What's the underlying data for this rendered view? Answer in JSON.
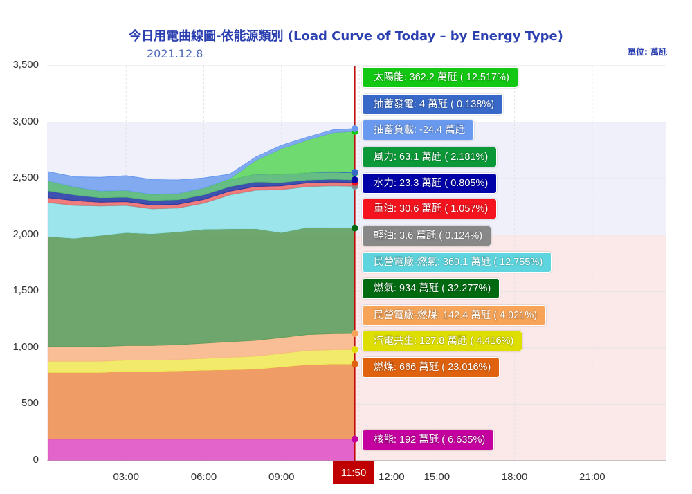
{
  "chart_data": {
    "type": "area",
    "stacked": true,
    "title": "今日用電曲線圖-依能源類別 (Load Curve of Today – by Energy Type)",
    "subtitle": "2021.12.8",
    "unit_label": "單位: 萬瓩",
    "unit": "萬瓩",
    "ylim": [
      0,
      3500
    ],
    "yticks": [
      "0",
      "500",
      "1,000",
      "1,500",
      "2,000",
      "2,500",
      "3,000",
      "3,500"
    ],
    "xlim": [
      "00:00",
      "24:00"
    ],
    "xticks": [
      "03:00",
      "06:00",
      "09:00",
      "12:00",
      "15:00",
      "18:00",
      "21:00"
    ],
    "current_time": "11:50",
    "grid": true,
    "bands": [
      {
        "from": 0,
        "to": 2000,
        "color": "#fbe9ea"
      },
      {
        "from": 2000,
        "to": 3000,
        "color": "#eff0fa"
      }
    ],
    "x": [
      "00:00",
      "01:00",
      "02:00",
      "03:00",
      "04:00",
      "05:00",
      "06:00",
      "07:00",
      "08:00",
      "09:00",
      "10:00",
      "11:00",
      "11:50"
    ],
    "series": [
      {
        "name": "核能",
        "value": "192",
        "pct": "6.635%",
        "fill": "#e055c8",
        "color": "#c4009f",
        "values": [
          192,
          192,
          192,
          192,
          192,
          192,
          192,
          192,
          192,
          192,
          192,
          192,
          192
        ]
      },
      {
        "name": "燃煤",
        "value": "666",
        "pct": "23.016%",
        "fill": "#ee9458",
        "color": "#e0620e",
        "values": [
          590,
          590,
          590,
          600,
          600,
          605,
          610,
          615,
          620,
          640,
          660,
          665,
          666
        ]
      },
      {
        "name": "汽電共生",
        "value": "127.8",
        "pct": "4.416%",
        "fill": "#efea5c",
        "color": "#dede00",
        "values": [
          100,
          100,
          100,
          100,
          100,
          100,
          105,
          110,
          115,
          120,
          125,
          127,
          127.8
        ]
      },
      {
        "name": "民營電廠-燃煤",
        "value": "142.4",
        "pct": "4.921%",
        "fill": "#f8b98c",
        "color": "#f7a458",
        "values": [
          130,
          130,
          130,
          130,
          130,
          132,
          135,
          138,
          140,
          140,
          142,
          142,
          142.4
        ]
      },
      {
        "name": "燃氣",
        "value": "934",
        "pct": "32.277%",
        "fill": "#5f9e5f",
        "color": "#006a10",
        "values": [
          975,
          960,
          985,
          1000,
          990,
          1000,
          1010,
          1000,
          990,
          930,
          950,
          940,
          934
        ]
      },
      {
        "name": "民營電廠-燃氣",
        "value": "369.1",
        "pct": "12.755%",
        "fill": "#94e3ea",
        "color": "#5ed5de",
        "values": [
          300,
          290,
          260,
          240,
          220,
          210,
          230,
          300,
          340,
          380,
          360,
          370,
          369.1
        ]
      },
      {
        "name": "輕油",
        "value": "3.6",
        "pct": "0.124%",
        "fill": "#999999",
        "color": "#888888",
        "values": [
          3.6,
          3.6,
          3.6,
          3.6,
          3.6,
          3.6,
          3.6,
          3.6,
          3.6,
          3.6,
          3.6,
          3.6,
          3.6
        ]
      },
      {
        "name": "重油",
        "value": "30.6",
        "pct": "1.057%",
        "fill": "#ef7070",
        "color": "#f5141e",
        "values": [
          40,
          40,
          30,
          30,
          30,
          30,
          30,
          30,
          30,
          30,
          30,
          30,
          30.6
        ]
      },
      {
        "name": "水力",
        "value": "23.3",
        "pct": "0.805%",
        "fill": "#2a3fa8",
        "color": "#0000a8",
        "values": [
          60,
          50,
          40,
          40,
          40,
          40,
          40,
          40,
          40,
          30,
          25,
          25,
          23.3
        ]
      },
      {
        "name": "風力",
        "value": "63.1",
        "pct": "2.181%",
        "fill": "#58b878",
        "color": "#0b9838",
        "values": [
          90,
          70,
          60,
          60,
          55,
          55,
          60,
          60,
          70,
          70,
          65,
          63,
          63.1
        ]
      },
      {
        "name": "抽蓄發電",
        "value": "4",
        "pct": "0.138%",
        "fill": "#3a6ad0",
        "color": "#3868c8",
        "values": [
          0,
          0,
          0,
          0,
          0,
          0,
          0,
          0,
          0,
          0,
          0,
          5,
          4
        ]
      },
      {
        "name": "太陽能",
        "value": "362.2",
        "pct": "12.517%",
        "fill": "#5fd75f",
        "color": "#12c812",
        "values": [
          0,
          0,
          0,
          0,
          0,
          0,
          0,
          10,
          120,
          230,
          290,
          345,
          362.2
        ]
      },
      {
        "name": "抽蓄負載",
        "value": "-24.4",
        "pct": "",
        "fill": "#74a2ee",
        "color": "#6a9af0",
        "values": [
          -80,
          -90,
          -120,
          -130,
          -130,
          -120,
          -90,
          -40,
          -30,
          -30,
          -25,
          -25,
          -24.4
        ]
      }
    ]
  }
}
